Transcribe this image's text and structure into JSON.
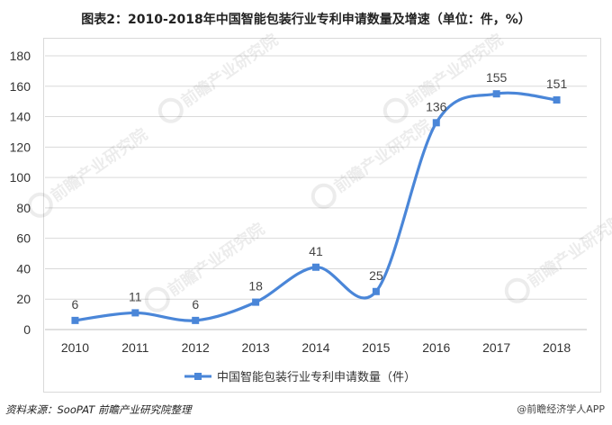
{
  "chart_data": {
    "type": "line",
    "title": "图表2：2010-2018年中国智能包装行业专利申请数量及增速（单位：件，%）",
    "categories": [
      "2010",
      "2011",
      "2012",
      "2013",
      "2014",
      "2015",
      "2016",
      "2017",
      "2018"
    ],
    "series": [
      {
        "name": "中国智能包装行业专利申请数量（件）",
        "values": [
          6,
          11,
          6,
          18,
          41,
          25,
          136,
          155,
          151
        ],
        "color": "#4a86d8"
      }
    ],
    "y_ticks": [
      0,
      20,
      40,
      60,
      80,
      100,
      120,
      140,
      160,
      180
    ],
    "ylim": [
      0,
      180
    ],
    "grid": "horizontal",
    "legend_position": "bottom",
    "data_labels": true,
    "smooth": true
  },
  "footer": {
    "source": "资料来源：SooPAT  前瞻产业研究院整理",
    "app_badge": "@前瞻经济学人APP"
  },
  "watermark": "前瞻产业研究院"
}
